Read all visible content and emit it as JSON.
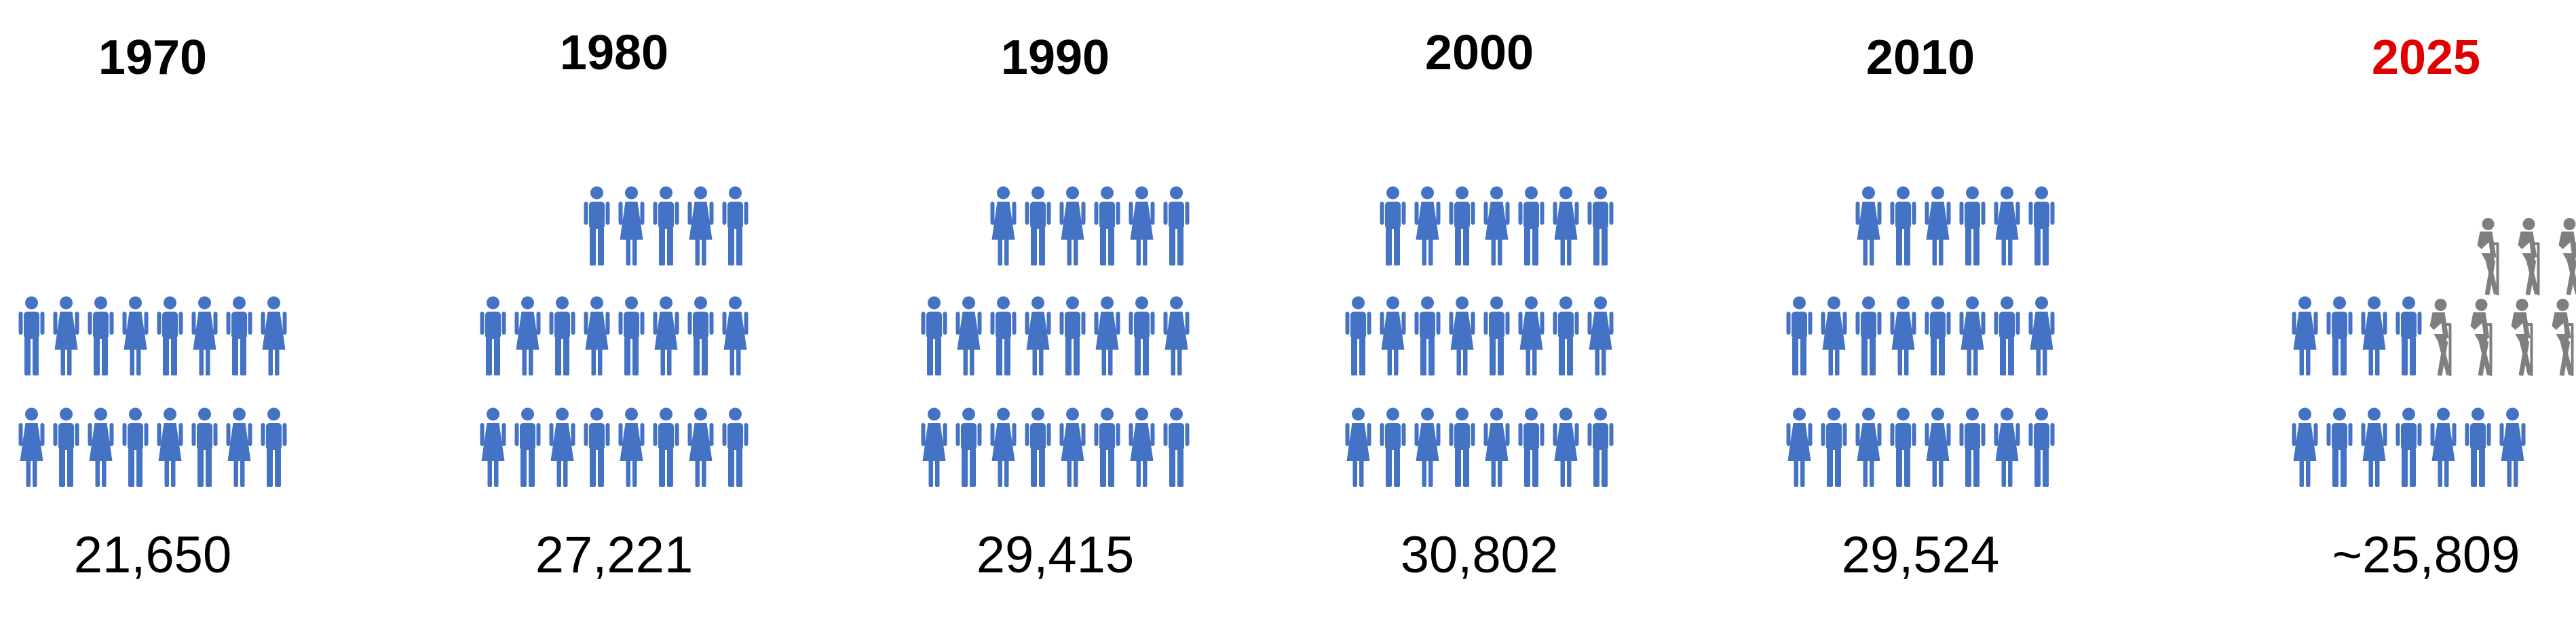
{
  "chart_data": {
    "type": "pictogram",
    "title": "",
    "series": [
      {
        "name": "",
        "icon": "person-icon",
        "color": "#4472C4",
        "values": [
          21650,
          27221,
          29415,
          30802,
          29524,
          25809
        ]
      }
    ],
    "categories": [
      "1970",
      "1980",
      "1990",
      "2000",
      "2010",
      "2025"
    ],
    "value_labels": [
      "21,650",
      "27,221",
      "29,415",
      "30,802",
      "29,524",
      "~25,809"
    ],
    "icon_counts": {
      "person": [
        16,
        21,
        22,
        23,
        22,
        11
      ],
      "elderly": [
        0,
        0,
        0,
        0,
        0,
        7
      ]
    },
    "icon_colors": {
      "person": "#4472C4",
      "elderly": "#7F7F7F"
    },
    "year_colors": [
      "#000000",
      "#000000",
      "#000000",
      "#000000",
      "#000000",
      "#E00000"
    ]
  }
}
